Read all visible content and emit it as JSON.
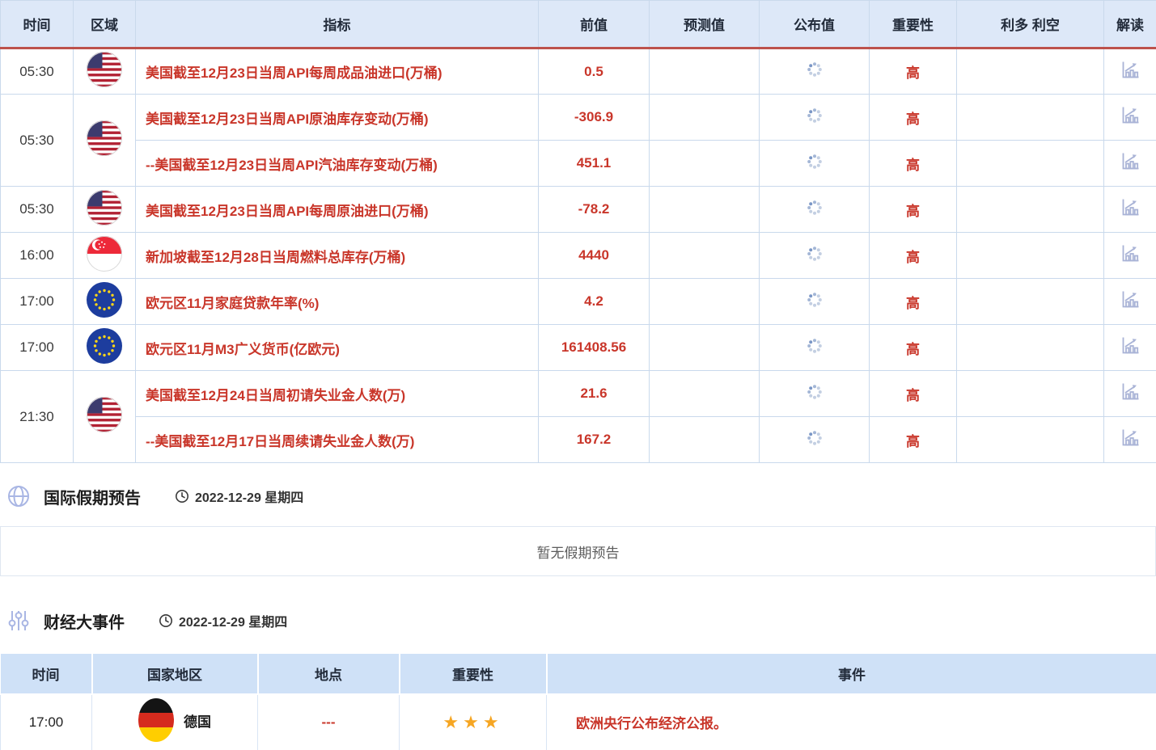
{
  "colors": {
    "accent_red": "#c9362a",
    "header_divider_red": "#bd524c",
    "calendar_header_bg": "#dde8f8",
    "events_header_bg": "#cfe1f7",
    "cell_border": "#c9d9ec",
    "icon_periwinkle": "#a9b6e4",
    "spinner_blue": "#c3cfe2",
    "spinner_dark_dot": "#7b97c6",
    "star_gold": "#f6a623",
    "empty_text_gray": "#5c5c5c"
  },
  "calendar_table": {
    "columns": [
      "时间",
      "区域",
      "指标",
      "前值",
      "预测值",
      "公布值",
      "重要性",
      "利多 利空",
      "解读"
    ],
    "published_value_icon": "loading-spinner-icon",
    "interpretation_icon": "bar-chart-icon",
    "groups": [
      {
        "time": "05:30",
        "flag": "us-flag",
        "rows": [
          {
            "indicator": "美国截至12月23日当周API每周成品油进口(万桶)",
            "previous": "0.5",
            "forecast": "",
            "importance": "高",
            "bulls_bears": ""
          }
        ]
      },
      {
        "time": "05:30",
        "flag": "us-flag",
        "rows": [
          {
            "indicator": "美国截至12月23日当周API原油库存变动(万桶)",
            "previous": "-306.9",
            "forecast": "",
            "importance": "高",
            "bulls_bears": ""
          },
          {
            "indicator": "--美国截至12月23日当周API汽油库存变动(万桶)",
            "previous": "451.1",
            "forecast": "",
            "importance": "高",
            "bulls_bears": ""
          }
        ]
      },
      {
        "time": "05:30",
        "flag": "us-flag",
        "rows": [
          {
            "indicator": "美国截至12月23日当周API每周原油进口(万桶)",
            "previous": "-78.2",
            "forecast": "",
            "importance": "高",
            "bulls_bears": ""
          }
        ]
      },
      {
        "time": "16:00",
        "flag": "sg-flag",
        "rows": [
          {
            "indicator": "新加坡截至12月28日当周燃料总库存(万桶)",
            "previous": "4440",
            "forecast": "",
            "importance": "高",
            "bulls_bears": ""
          }
        ]
      },
      {
        "time": "17:00",
        "flag": "eu-flag",
        "rows": [
          {
            "indicator": "欧元区11月家庭贷款年率(%)",
            "previous": "4.2",
            "forecast": "",
            "importance": "高",
            "bulls_bears": ""
          }
        ]
      },
      {
        "time": "17:00",
        "flag": "eu-flag",
        "rows": [
          {
            "indicator": "欧元区11月M3广义货币(亿欧元)",
            "previous": "161408.56",
            "forecast": "",
            "importance": "高",
            "bulls_bears": ""
          }
        ]
      },
      {
        "time": "21:30",
        "flag": "us-flag",
        "rows": [
          {
            "indicator": "美国截至12月24日当周初请失业金人数(万)",
            "previous": "21.6",
            "forecast": "",
            "importance": "高",
            "bulls_bears": ""
          },
          {
            "indicator": "--美国截至12月17日当周续请失业金人数(万)",
            "previous": "167.2",
            "forecast": "",
            "importance": "高",
            "bulls_bears": ""
          }
        ]
      }
    ]
  },
  "holiday_section": {
    "icon": "globe-icon",
    "title": "国际假期预告",
    "date_icon": "clock-icon",
    "date": "2022-12-29 星期四",
    "empty_text": "暂无假期预告"
  },
  "events_section": {
    "icon": "sliders-icon",
    "title": "财经大事件",
    "date_icon": "clock-icon",
    "date": "2022-12-29 星期四",
    "columns": [
      "时间",
      "国家地区",
      "地点",
      "重要性",
      "事件"
    ],
    "rows": [
      {
        "time": "17:00",
        "flag": "de-flag",
        "country": "德国",
        "location": "---",
        "importance_stars": 3,
        "event": "欧洲央行公布经济公报。"
      }
    ]
  }
}
